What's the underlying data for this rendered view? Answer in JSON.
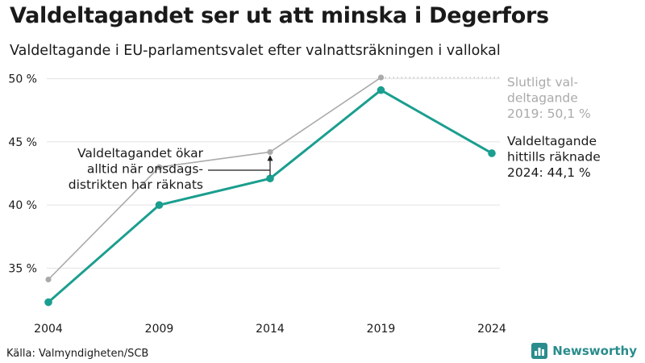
{
  "header": {
    "title": "Valdeltagandet ser ut att minska i Degerfors",
    "subtitle": "Valdeltagande i EU-parlamentsvalet efter valnattsräkningen i vallokal"
  },
  "chart_data": {
    "type": "line",
    "x": [
      2004,
      2009,
      2014,
      2019,
      2024
    ],
    "categories": [
      "2004",
      "2009",
      "2014",
      "2019",
      "2024"
    ],
    "series": [
      {
        "key": "final",
        "color": "#aaaaaa",
        "values": [
          34.1,
          43.0,
          44.2,
          50.1,
          null
        ]
      },
      {
        "key": "counted",
        "color": "#1a9e8f",
        "values": [
          32.3,
          40.0,
          42.1,
          49.1,
          44.1
        ]
      }
    ],
    "ylim": [
      31,
      51
    ],
    "yticks": [
      35,
      40,
      45,
      50
    ],
    "ytick_labels": [
      "35 %",
      "40 %",
      "45 %",
      "50 %"
    ],
    "grid": true,
    "annotations": {
      "final_label": [
        "Slutligt val-",
        "deltagande",
        "2019: 50,1 %"
      ],
      "counted_label": [
        "Valdeltagande",
        "hittills räknade",
        "2024: 44,1 %"
      ],
      "note": [
        "Valdeltagandet ökar",
        "alltid när onsdags-",
        "distrikten har räknats"
      ]
    }
  },
  "footer": {
    "source": "Källa: Valmyndigheten/SCB",
    "brand": "Newsworthy",
    "brand_color": "#2a8c8c"
  }
}
